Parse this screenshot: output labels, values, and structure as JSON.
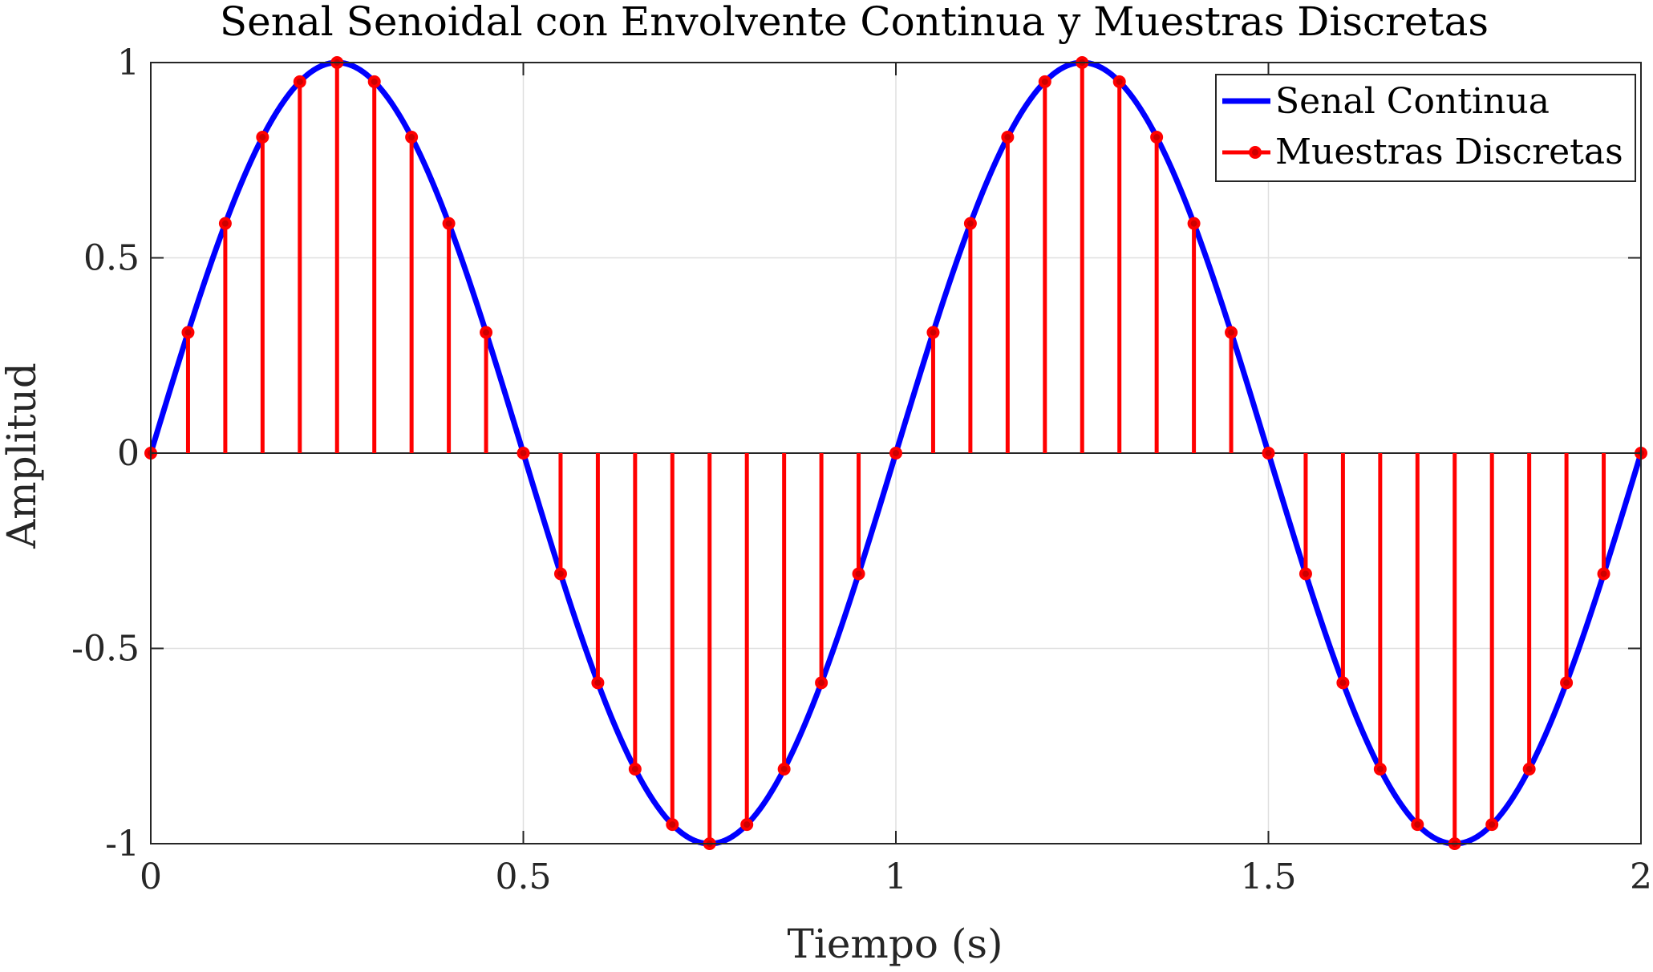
{
  "chart_data": {
    "type": "line",
    "title": "Senal Senoidal con Envolvente Continua y Muestras Discretas",
    "xlabel": "Tiempo (s)",
    "ylabel": "Amplitud",
    "xlim": [
      0,
      2
    ],
    "ylim": [
      -1,
      1
    ],
    "xticks": [
      0,
      0.5,
      1,
      1.5,
      2
    ],
    "xtick_labels": [
      "0",
      "0.5",
      "1",
      "1.5",
      "2"
    ],
    "yticks": [
      -1,
      -0.5,
      0,
      0.5,
      1
    ],
    "ytick_labels": [
      "-1",
      "-0.5",
      "0",
      "0.5",
      "1"
    ],
    "grid": true,
    "legend_position": "top-right",
    "series": [
      {
        "name": "Senal Continua",
        "style": "line",
        "color": "#0000ff",
        "function": "sin(2*pi*1*t)",
        "frequency_hz": 1
      },
      {
        "name": "Muestras Discretas",
        "style": "stem",
        "color": "#ff0000",
        "x": [
          0,
          0.05,
          0.1,
          0.15,
          0.2,
          0.25,
          0.3,
          0.35,
          0.4,
          0.45,
          0.5,
          0.55,
          0.6,
          0.65,
          0.7,
          0.75,
          0.8,
          0.85,
          0.9,
          0.95,
          1,
          1.05,
          1.1,
          1.15,
          1.2,
          1.25,
          1.3,
          1.35,
          1.4,
          1.45,
          1.5,
          1.55,
          1.6,
          1.65,
          1.7,
          1.75,
          1.8,
          1.85,
          1.9,
          1.95,
          2
        ],
        "values": [
          0,
          0.309,
          0.588,
          0.809,
          0.951,
          1,
          0.951,
          0.809,
          0.588,
          0.309,
          0,
          -0.309,
          -0.588,
          -0.809,
          -0.951,
          -1,
          -0.951,
          -0.809,
          -0.588,
          -0.309,
          0,
          0.309,
          0.588,
          0.809,
          0.951,
          1,
          0.951,
          0.809,
          0.588,
          0.309,
          0,
          -0.309,
          -0.588,
          -0.809,
          -0.951,
          -1,
          -0.951,
          -0.809,
          -0.588,
          -0.309,
          0
        ]
      }
    ]
  }
}
